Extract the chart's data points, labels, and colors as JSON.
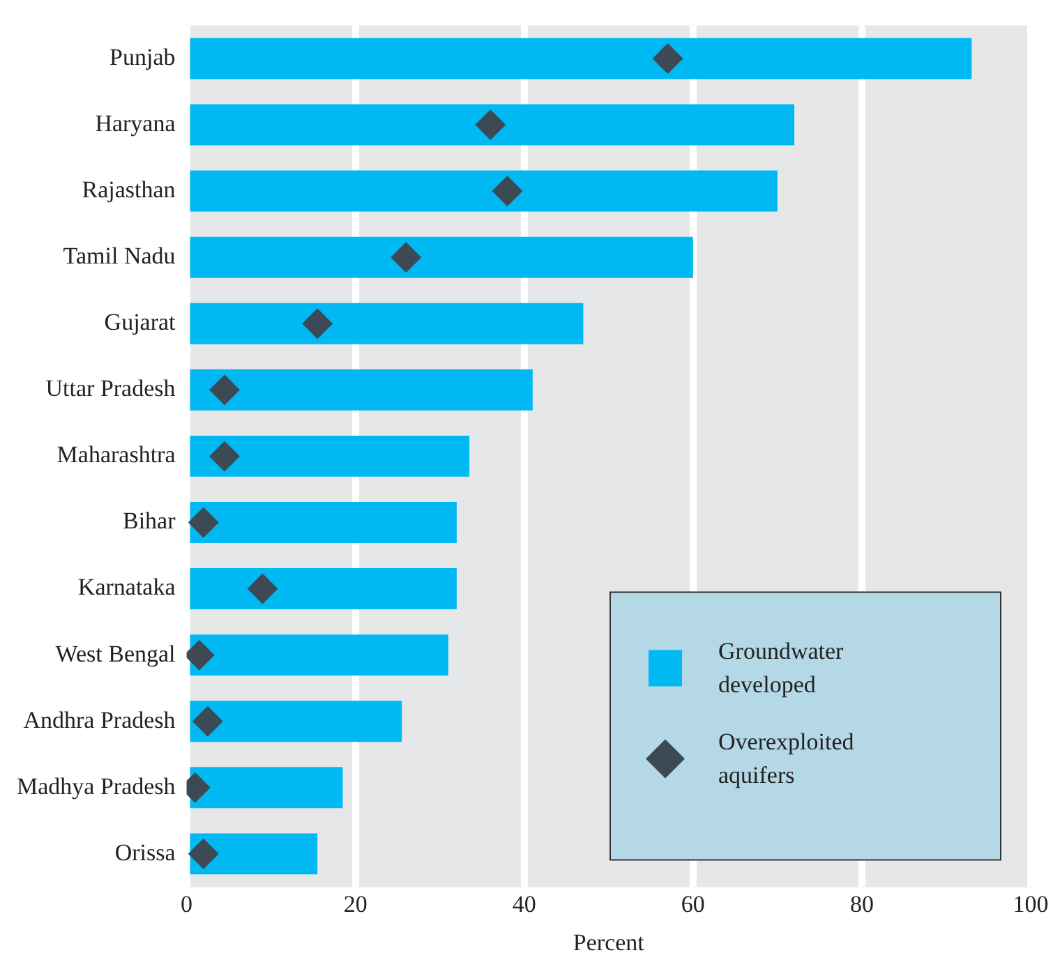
{
  "chart_data": {
    "type": "bar",
    "orientation": "horizontal",
    "xlabel": "Percent",
    "categories": [
      "Punjab",
      "Haryana",
      "Rajasthan",
      "Tamil Nadu",
      "Gujarat",
      "Uttar Pradesh",
      "Maharashtra",
      "Bihar",
      "Karnataka",
      "West Bengal",
      "Andhra Pradesh",
      "Madhya Pradesh",
      "Orissa"
    ],
    "series": [
      {
        "name": "Groundwater developed",
        "color": "#00b9f2",
        "values": [
          93,
          72,
          70,
          60,
          47,
          41,
          33.5,
          32,
          32,
          31,
          25.5,
          18.5,
          15.5
        ]
      },
      {
        "name": "Overexploited aquifers",
        "type": "scatter",
        "color": "#3d4a55",
        "values": [
          57,
          36,
          38,
          26,
          15.5,
          4.5,
          4.5,
          2,
          9,
          1.5,
          2.5,
          1,
          2
        ]
      }
    ],
    "marker": "diamond",
    "xlim": [
      0,
      100
    ],
    "xticks": [
      0,
      20,
      40,
      60,
      80,
      100
    ],
    "grid": "x",
    "legend": "bottom right"
  }
}
